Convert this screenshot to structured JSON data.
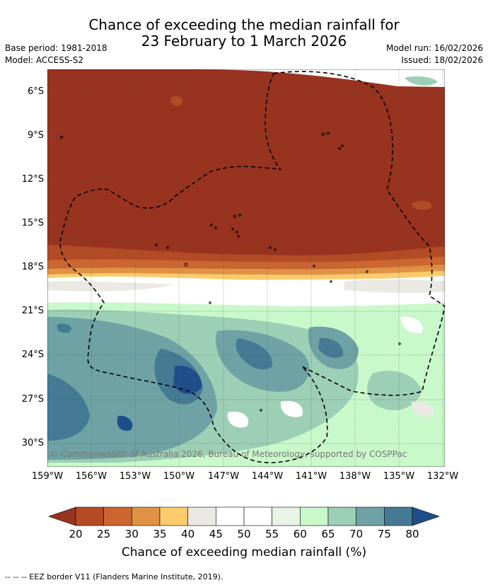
{
  "title": {
    "line1": "Chance of exceeding the median rainfall for",
    "line2": "23 February to 1 March 2026"
  },
  "meta": {
    "base_period": "Base period: 1981-2018",
    "model": "Model: ACCESS-S2",
    "model_run": "Model run: 16/02/2026",
    "issued": "Issued: 18/02/2026"
  },
  "latitude_labels": [
    "6°S",
    "9°S",
    "12°S",
    "15°S",
    "18°S",
    "21°S",
    "24°S",
    "27°S",
    "30°S"
  ],
  "longitude_labels": [
    "159°W",
    "156°W",
    "153°W",
    "150°W",
    "147°W",
    "144°W",
    "141°W",
    "138°W",
    "135°W",
    "132°W"
  ],
  "copyright": "© Commonwealth of Australia 2026, Bureau of Meteorology, supported by COSPPac",
  "colorbar": {
    "ticks": [
      "20",
      "25",
      "30",
      "35",
      "40",
      "45",
      "50",
      "55",
      "60",
      "65",
      "70",
      "75",
      "80"
    ],
    "colors": [
      "#98331f",
      "#b34b25",
      "#cc6631",
      "#e09245",
      "#fbcb6c",
      "#ebe9e3",
      "#ffffff",
      "#ffffff",
      "#e9f4e6",
      "#c9f8cb",
      "#9ccfb5",
      "#6ea2a4",
      "#457a95"
    ],
    "low_color": "#98331f",
    "high_color": "#1f4f8a",
    "label": "Chance of exceeding median rainfall (%)"
  },
  "footer": "--  --  -- EEZ border V11 (Flanders Marine Institute, 2019)."
}
